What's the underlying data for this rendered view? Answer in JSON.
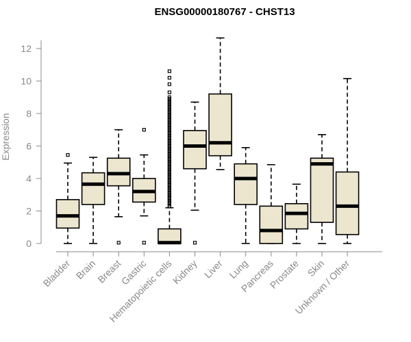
{
  "chart_data": {
    "type": "box",
    "title": "ENSG00000180767 - CHST13",
    "ylabel": "Expression",
    "xlabel": "",
    "ylim": [
      0,
      12.5
    ],
    "yticks": [
      0,
      2,
      4,
      6,
      8,
      10,
      12
    ],
    "box_fill": "#ede6cf",
    "categories": [
      "Bladder",
      "Brain",
      "Breast",
      "Gastric",
      "Hematopoietic cells",
      "Kidney",
      "Liver",
      "Lung",
      "Pancreas",
      "Prostate",
      "Skin",
      "Unknown / Other"
    ],
    "boxes": [
      {
        "min": 0,
        "q1": 0.95,
        "median": 1.7,
        "q3": 2.7,
        "max": 4.95,
        "outliers": [
          5.45
        ]
      },
      {
        "min": 0,
        "q1": 2.4,
        "median": 3.65,
        "q3": 4.35,
        "max": 5.3,
        "outliers": []
      },
      {
        "min": 1.65,
        "q1": 3.55,
        "median": 4.3,
        "q3": 5.25,
        "max": 7.0,
        "outliers": [
          0.05
        ]
      },
      {
        "min": 1.7,
        "q1": 2.55,
        "median": 3.2,
        "q3": 4.0,
        "max": 5.45,
        "outliers": [
          0.05,
          7.0
        ]
      },
      {
        "min": 0,
        "q1": 0,
        "median": 0.05,
        "q3": 0.9,
        "max": 2.2,
        "outliers": [
          2.3,
          2.4,
          2.5,
          2.6,
          2.7,
          2.8,
          2.9,
          3.0,
          3.1,
          3.2,
          3.3,
          3.4,
          3.5,
          3.6,
          3.7,
          3.8,
          3.9,
          4.0,
          4.1,
          4.2,
          4.3,
          4.4,
          4.5,
          4.6,
          4.7,
          4.8,
          4.9,
          5.0,
          5.1,
          5.2,
          5.3,
          5.4,
          5.5,
          5.6,
          5.7,
          5.8,
          5.9,
          6.0,
          6.1,
          6.2,
          6.3,
          6.4,
          6.5,
          6.6,
          6.7,
          6.8,
          6.9,
          7.0,
          7.1,
          7.2,
          7.3,
          7.4,
          7.5,
          7.6,
          7.7,
          7.8,
          7.9,
          8.0,
          8.1,
          8.2,
          8.3,
          8.4,
          8.5,
          8.6,
          8.7,
          8.8,
          8.9,
          9.0,
          9.3,
          9.8,
          10.2,
          10.6
        ]
      },
      {
        "min": 2.05,
        "q1": 4.6,
        "median": 6.0,
        "q3": 6.95,
        "max": 8.7,
        "outliers": [
          0.05
        ]
      },
      {
        "min": 4.55,
        "q1": 5.4,
        "median": 6.2,
        "q3": 9.2,
        "max": 12.65,
        "outliers": []
      },
      {
        "min": 0,
        "q1": 2.4,
        "median": 4.0,
        "q3": 4.9,
        "max": 5.9,
        "outliers": []
      },
      {
        "min": 0,
        "q1": 0,
        "median": 0.8,
        "q3": 2.3,
        "max": 4.85,
        "outliers": []
      },
      {
        "min": 0,
        "q1": 0.9,
        "median": 1.85,
        "q3": 2.45,
        "max": 3.65,
        "outliers": []
      },
      {
        "min": 0,
        "q1": 1.3,
        "median": 4.9,
        "q3": 5.25,
        "max": 6.7,
        "outliers": []
      },
      {
        "min": 0,
        "q1": 0.55,
        "median": 2.3,
        "q3": 4.4,
        "max": 10.15,
        "outliers": []
      }
    ]
  }
}
